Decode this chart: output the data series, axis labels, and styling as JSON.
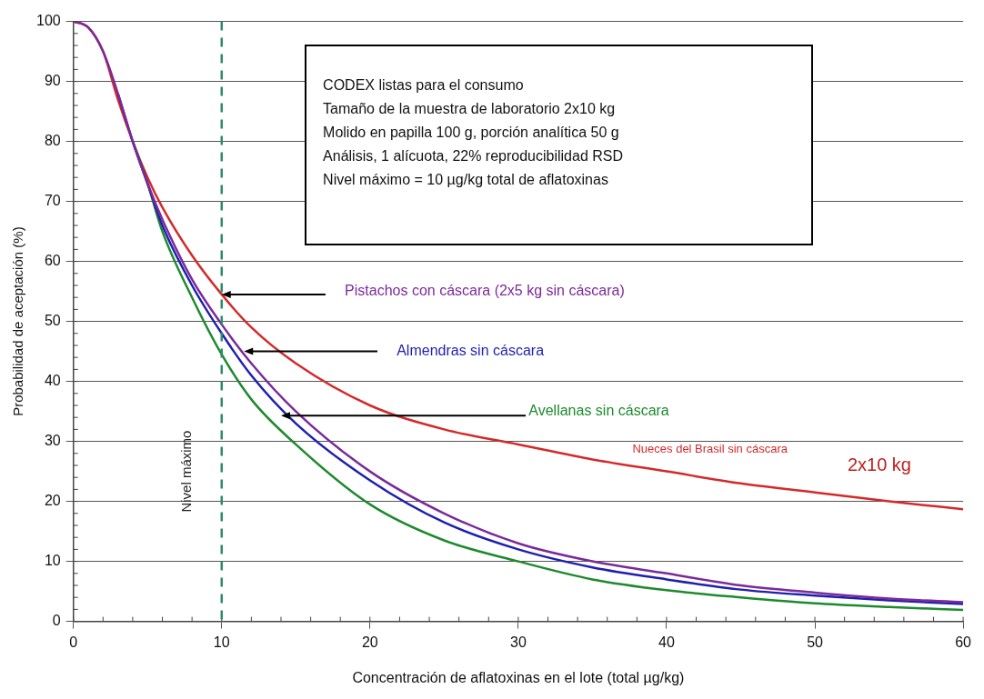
{
  "chart_data": {
    "type": "line",
    "x": [
      0,
      1,
      2,
      3,
      4,
      5,
      6,
      8,
      10,
      12,
      15,
      20,
      25,
      30,
      35,
      40,
      45,
      50,
      55,
      60
    ],
    "series": [
      {
        "name": "Pistachos con cáscara (2x5 kg sin cáscara)",
        "color": "#7b2a9a",
        "values": [
          100,
          99,
          95,
          88,
          80,
          73,
          67,
          57,
          49.5,
          43,
          35,
          25,
          18,
          13,
          10,
          8,
          6,
          4.8,
          3.8,
          3.2
        ]
      },
      {
        "name": "Almendras sin cáscara",
        "color": "#1f1fb0",
        "values": [
          null,
          null,
          null,
          88,
          80,
          73,
          66,
          56,
          48,
          41,
          33,
          23.5,
          16.5,
          12,
          9,
          7,
          5.3,
          4.3,
          3.5,
          2.9
        ]
      },
      {
        "name": "Avellanas sin cáscara",
        "color": "#1e8a2e",
        "values": [
          null,
          null,
          null,
          null,
          80,
          73,
          65,
          54,
          44.5,
          37,
          29.5,
          19.5,
          13.5,
          10,
          7,
          5.2,
          4,
          3,
          2.4,
          1.9
        ]
      },
      {
        "name": "Nueces del Brasil sin cáscara",
        "color": "#d42a2a",
        "values": [
          100,
          99,
          95,
          87,
          80,
          74,
          69,
          61,
          54.5,
          49,
          43,
          36,
          32,
          29.5,
          27,
          25,
          23,
          21.5,
          20,
          18.7
        ]
      }
    ],
    "xlabel": "Concentración de aflatoxinas en el lote (total µg/kg)",
    "ylabel": "Probabilidad de aceptación (%)",
    "xlim": [
      0,
      60
    ],
    "xticks": [
      0,
      10,
      20,
      30,
      40,
      50,
      60
    ],
    "ylim": [
      0,
      100
    ],
    "yticks": [
      0,
      10,
      20,
      30,
      40,
      50,
      60,
      70,
      80,
      90,
      100
    ],
    "grid": "y",
    "legend": false,
    "marker": "none",
    "line_style": "solid",
    "ref_lines": [
      {
        "axis": "x",
        "value": 10,
        "label": "Nivel máximo",
        "color": "#2e8b6a",
        "line_style": "dashed"
      }
    ],
    "annotations": [
      "CODEX listas para el consumo",
      "Tamaño de la muestra de laboratorio 2x10 kg",
      "Molido en papilla 100 g, porción analítica 50 g",
      "Análisis, 1 alícuota, 22% reproducibilidad RSD",
      "Nivel máximo = 10 µg/kg total de aflatoxinas",
      "2x10 kg"
    ]
  }
}
